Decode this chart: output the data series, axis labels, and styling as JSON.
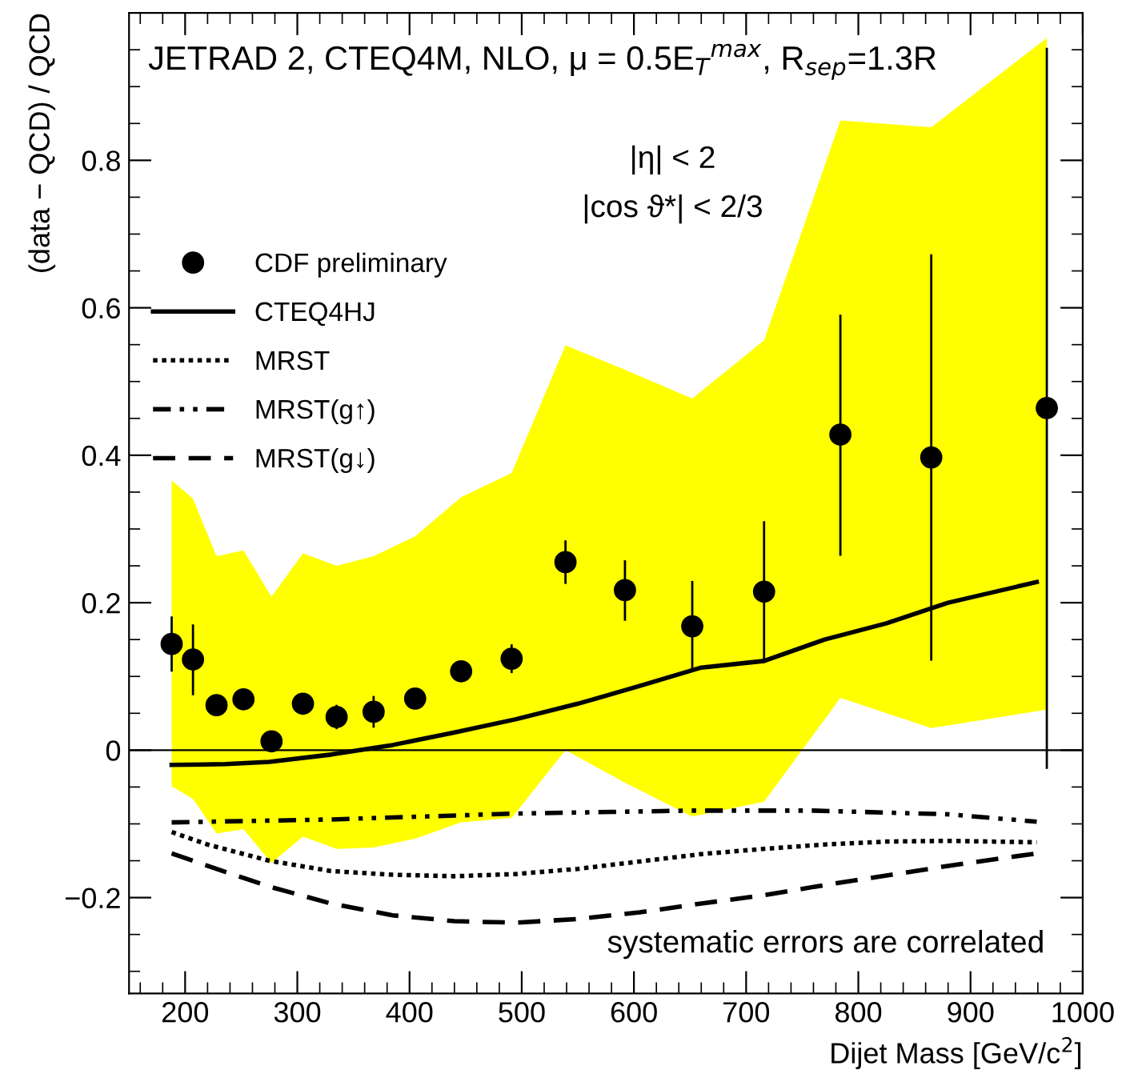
{
  "chart_data": {
    "type": "scatter",
    "xlabel": "Dijet Mass [GeV/c$^{2}$]",
    "ylabel": "(data − QCD) / QCD",
    "xlim": [
      150,
      1000
    ],
    "ylim": [
      -0.33,
      1.0
    ],
    "xticks": [
      200,
      300,
      400,
      500,
      600,
      700,
      800,
      900,
      1000
    ],
    "yticks": [
      -0.2,
      0,
      0.2,
      0.4,
      0.6,
      0.8
    ],
    "grid": false,
    "legend": "top left",
    "series": [
      {
        "name": "CDF preliminary",
        "color": "#000000",
        "lower": [
          -0.049,
          -0.066,
          -0.113,
          -0.107,
          -0.153,
          -0.117,
          -0.134,
          -0.132,
          -0.12,
          -0.098,
          -0.092,
          0,
          -0.044,
          -0.09,
          -0.07,
          0.071,
          0.03,
          0.055
        ],
        "upper": [
          0.366,
          0.341,
          0.263,
          0.271,
          0.208,
          0.267,
          0.25,
          0.263,
          0.29,
          0.343,
          0.376,
          0.549,
          0.516,
          0.477,
          0.556,
          0.854,
          0.845,
          0.966
        ],
        "marker": "circle",
        "x": [
          188,
          207,
          228,
          252,
          277,
          305,
          335,
          368,
          405,
          446,
          491,
          539,
          592,
          652,
          716,
          784,
          865,
          968
        ],
        "values": [
          0.144,
          0.123,
          0.061,
          0.069,
          0.012,
          0.063,
          0.045,
          0.052,
          0.07,
          0.107,
          0.124,
          0.255,
          0.217,
          0.168,
          0.215,
          0.428,
          0.397,
          0.464
        ],
        "errors": [
          [
            0.108,
            0.18
          ],
          [
            0.076,
            0.169
          ],
          null,
          null,
          null,
          null,
          [
            0.03,
            0.06
          ],
          [
            0.032,
            0.072
          ],
          null,
          null,
          [
            0.106,
            0.142
          ],
          [
            0.227,
            0.283
          ],
          [
            0.177,
            0.256
          ],
          [
            0.112,
            0.228
          ],
          [
            0.123,
            0.309
          ],
          [
            0.265,
            0.589
          ],
          [
            0.123,
            0.671
          ],
          [
            -0.024,
            0.951
          ]
        ]
      },
      {
        "name": "CTEQ4HJ",
        "type": "line",
        "color": "#000000",
        "line_style": "solid",
        "x": [
          188,
          236,
          275,
          330,
          385,
          440,
          495,
          550,
          605,
          660,
          716,
          770,
          825,
          880,
          959
        ],
        "values": [
          -0.02,
          -0.019,
          -0.016,
          -0.006,
          0.007,
          0.024,
          0.042,
          0.063,
          0.087,
          0.112,
          0.121,
          0.15,
          0.172,
          0.2,
          0.228
        ]
      },
      {
        "name": "MRST",
        "type": "line",
        "color": "#000000",
        "line_style": "dotted",
        "x": [
          188,
          220,
          275,
          330,
          385,
          440,
          495,
          550,
          605,
          660,
          715,
          770,
          825,
          880,
          959
        ],
        "values": [
          -0.111,
          -0.128,
          -0.15,
          -0.164,
          -0.169,
          -0.171,
          -0.168,
          -0.161,
          -0.151,
          -0.141,
          -0.134,
          -0.128,
          -0.124,
          -0.123,
          -0.125
        ]
      },
      {
        "name": "MRST(g↑)",
        "type": "line",
        "color": "#000000",
        "line_style": "dashdot",
        "x": [
          188,
          330,
          495,
          649,
          760,
          880,
          959
        ],
        "values": [
          -0.098,
          -0.094,
          -0.086,
          -0.082,
          -0.082,
          -0.087,
          -0.097
        ]
      },
      {
        "name": "MRST(g↓)",
        "type": "line",
        "color": "#000000",
        "line_style": "dashed",
        "x": [
          188,
          220,
          275,
          330,
          385,
          440,
          495,
          550,
          605,
          660,
          715,
          770,
          825,
          880,
          959
        ],
        "values": [
          -0.14,
          -0.157,
          -0.185,
          -0.208,
          -0.224,
          -0.232,
          -0.234,
          -0.229,
          -0.22,
          -0.208,
          -0.197,
          -0.183,
          -0.17,
          -0.157,
          -0.14
        ]
      }
    ],
    "ref_lines": [
      {
        "axis": "y",
        "value": 0,
        "color": "#000000",
        "line_style": "solid"
      }
    ],
    "annotations": [
      "JETRAD 2, CTEQ4M, NLO, μ = 0.5E$_{T}$$^{max}$, R$_{sep}$=1.3R",
      "|η| < 2",
      "|cos ϑ*| < 2/3",
      "systematic errors are correlated"
    ]
  }
}
